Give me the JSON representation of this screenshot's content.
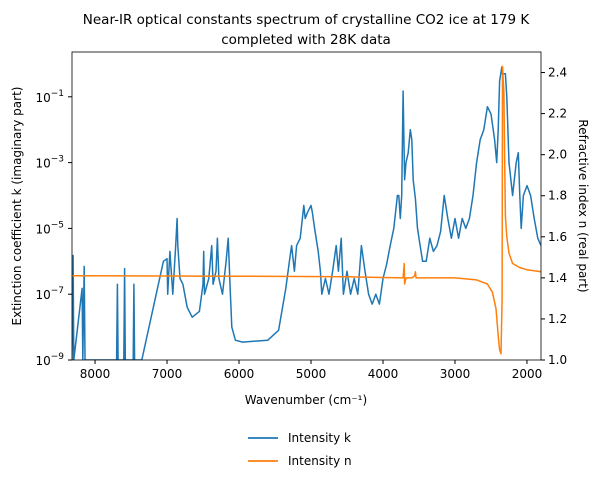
{
  "chart_data": {
    "type": "line",
    "title": [
      "Near-IR optical constants spectrum of crystalline CO2 ice at 179 K",
      "completed with 28K data"
    ],
    "x_label": "Wavenumber (cm⁻¹)",
    "y_label": "Extinction coefficient k (imaginary part)",
    "y2_label": "Refractive index n (real part)",
    "xlim": [
      8320,
      1805
    ],
    "xticks": [
      8000,
      7000,
      6000,
      5000,
      4000,
      3000,
      2000
    ],
    "ylim": [
      1e-09,
      2.3
    ],
    "y_scale": "log",
    "yticks": [
      {
        "value": 1e-09,
        "label": "10",
        "exponent": "−9"
      },
      {
        "value": 1e-07,
        "label": "10",
        "exponent": "−7"
      },
      {
        "value": 1e-05,
        "label": "10",
        "exponent": "−5"
      },
      {
        "value": 0.001,
        "label": "10",
        "exponent": "−3"
      },
      {
        "value": 0.1,
        "label": "10",
        "exponent": "−1"
      }
    ],
    "y2lim": [
      1.0,
      2.5
    ],
    "y2ticks": [
      {
        "value": 1,
        "label": "1.0"
      },
      1.2,
      1.4,
      1.6,
      1.8,
      {
        "value": 2,
        "label": "2.0"
      },
      2.2,
      2.4
    ],
    "legend": "bottom",
    "series": [
      {
        "name": "Intensity k",
        "color": "#1f77b4",
        "axis": "y",
        "x": [
          8320,
          8305,
          8295,
          8180,
          8170,
          8150,
          8140,
          7700,
          7690,
          7680,
          7600,
          7590,
          7580,
          7470,
          7460,
          7450,
          7350,
          7250,
          7150,
          7050,
          7000,
          6990,
          6960,
          6920,
          6880,
          6860,
          6850,
          6820,
          6780,
          6720,
          6650,
          6550,
          6500,
          6490,
          6480,
          6420,
          6380,
          6360,
          6320,
          6300,
          6280,
          6230,
          6180,
          6150,
          6120,
          6100,
          6050,
          5950,
          5600,
          5450,
          5350,
          5300,
          5270,
          5230,
          5200,
          5150,
          5100,
          5080,
          5050,
          5000,
          4980,
          4950,
          4900,
          4870,
          4850,
          4800,
          4750,
          4700,
          4650,
          4620,
          4580,
          4550,
          4500,
          4450,
          4400,
          4350,
          4300,
          4250,
          4200,
          4150,
          4100,
          4050,
          4000,
          3950,
          3900,
          3850,
          3800,
          3780,
          3760,
          3740,
          3720,
          3700,
          3680,
          3650,
          3620,
          3600,
          3580,
          3550,
          3520,
          3500,
          3450,
          3400,
          3350,
          3300,
          3250,
          3200,
          3150,
          3100,
          3050,
          3000,
          2950,
          2900,
          2850,
          2800,
          2750,
          2700,
          2650,
          2600,
          2550,
          2500,
          2450,
          2420,
          2400,
          2380,
          2350,
          2340,
          2300,
          2280,
          2250,
          2200,
          2150,
          2120,
          2100,
          2080,
          2050,
          2000,
          1950,
          1900,
          1850,
          1805
        ],
        "values": [
          1e-09,
          1.5e-06,
          1e-09,
          1.5e-07,
          1e-09,
          7e-07,
          1e-09,
          1e-09,
          2e-07,
          1e-09,
          1e-09,
          6e-07,
          1e-09,
          1e-09,
          2e-07,
          1e-09,
          1e-09,
          1e-08,
          1e-07,
          1e-06,
          1.2e-06,
          1e-07,
          2e-06,
          1e-07,
          3e-06,
          2e-05,
          3e-06,
          3e-07,
          2e-07,
          4e-08,
          2e-08,
          3e-08,
          2e-07,
          2e-06,
          1e-07,
          3e-07,
          3e-06,
          2e-07,
          5e-07,
          5e-06,
          3e-07,
          1e-07,
          1e-06,
          5e-06,
          1e-07,
          1e-08,
          4e-09,
          3.5e-09,
          4e-09,
          8e-09,
          1.5e-07,
          1e-06,
          3e-06,
          5e-07,
          3e-06,
          5e-06,
          5e-05,
          2e-05,
          3e-05,
          5e-05,
          3e-05,
          1e-05,
          2e-06,
          5e-07,
          1e-07,
          3e-07,
          1e-07,
          5e-07,
          3e-06,
          5e-07,
          5e-06,
          1e-07,
          5e-07,
          1e-07,
          3e-07,
          1e-07,
          3e-06,
          5e-07,
          1e-07,
          5e-08,
          1e-07,
          5e-08,
          3e-07,
          8e-07,
          3e-06,
          1e-05,
          0.0001,
          0.0001,
          2e-05,
          0.0001,
          0.15,
          0.0003,
          0.001,
          0.002,
          0.01,
          0.005,
          0.0003,
          8e-05,
          1e-05,
          5e-06,
          1e-06,
          1e-06,
          5e-06,
          2e-06,
          3e-06,
          8e-06,
          0.0001,
          2e-05,
          5e-06,
          2e-05,
          5e-06,
          2e-05,
          1e-05,
          2e-05,
          0.0001,
          0.001,
          0.005,
          0.01,
          0.05,
          0.03,
          0.005,
          0.001,
          0.01,
          0.3,
          0.8,
          0.5,
          0.5,
          0.1,
          0.001,
          0.0001,
          0.001,
          0.002,
          0.0001,
          1e-05,
          0.0001,
          0.0002,
          0.0001,
          2e-05,
          5e-06,
          3e-06
        ]
      },
      {
        "name": "Intensity n",
        "color": "#ff7f0e",
        "axis": "y2",
        "x": [
          8320,
          6000,
          4500,
          3720,
          3705,
          3700,
          3680,
          3600,
          3560,
          3550,
          3540,
          3000,
          2700,
          2550,
          2480,
          2430,
          2400,
          2380,
          2360,
          2345,
          2340,
          2320,
          2310,
          2300,
          2280,
          2250,
          2200,
          2100,
          2000,
          1805
        ],
        "values": [
          1.41,
          1.408,
          1.405,
          1.4,
          1.47,
          1.37,
          1.4,
          1.4,
          1.41,
          1.43,
          1.4,
          1.4,
          1.39,
          1.37,
          1.33,
          1.25,
          1.12,
          1.05,
          1.03,
          1.3,
          2.43,
          2.3,
          2.0,
          1.7,
          1.6,
          1.52,
          1.47,
          1.45,
          1.44,
          1.43
        ]
      }
    ]
  }
}
